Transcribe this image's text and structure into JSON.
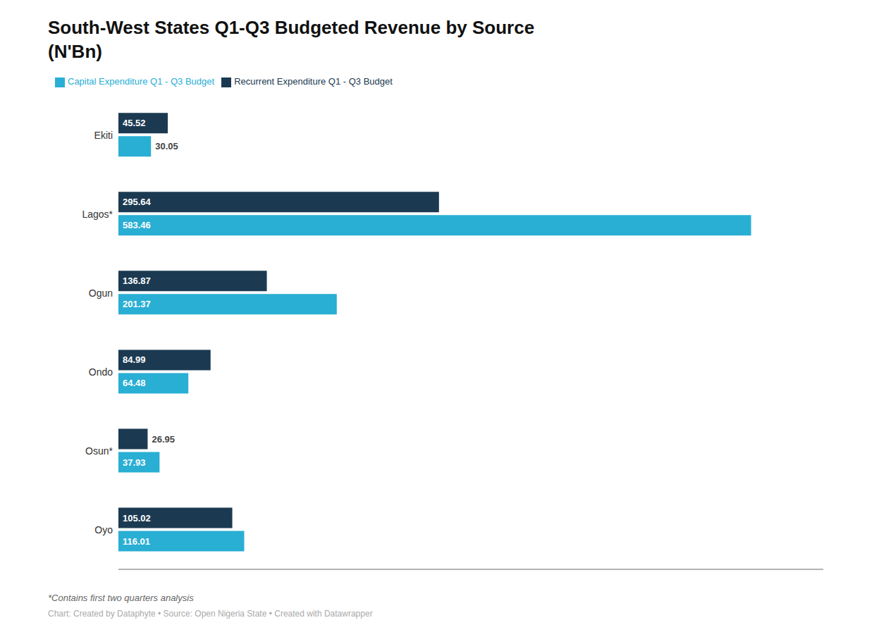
{
  "chart_data": {
    "type": "bar",
    "orientation": "horizontal",
    "title": "South-West States Q1-Q3 Budgeted Revenue by Source",
    "subtitle": "(N'Bn)",
    "categories": [
      "Ekiti",
      "Lagos*",
      "Ogun",
      "Ondo",
      "Osun*",
      "Oyo"
    ],
    "series": [
      {
        "name": "Recurrent Expenditure Q1 - Q3 Budget",
        "color": "#1b3a52",
        "values": [
          45.52,
          295.64,
          136.87,
          84.99,
          26.95,
          105.02
        ]
      },
      {
        "name": "Capital Expenditure Q1 - Q3 Budget",
        "color": "#29aed4",
        "values": [
          30.05,
          583.46,
          201.37,
          64.48,
          37.93,
          116.01
        ]
      }
    ],
    "xlim": [
      0,
      650
    ],
    "tick_labels": "y",
    "grid": false,
    "legend": "upper left",
    "data_labels": true,
    "annotations": [
      "*Contains first two quarters analysis",
      "Chart: Created by Dataphyte • Source: Open Nigeria State • Created with Datawrapper"
    ]
  }
}
